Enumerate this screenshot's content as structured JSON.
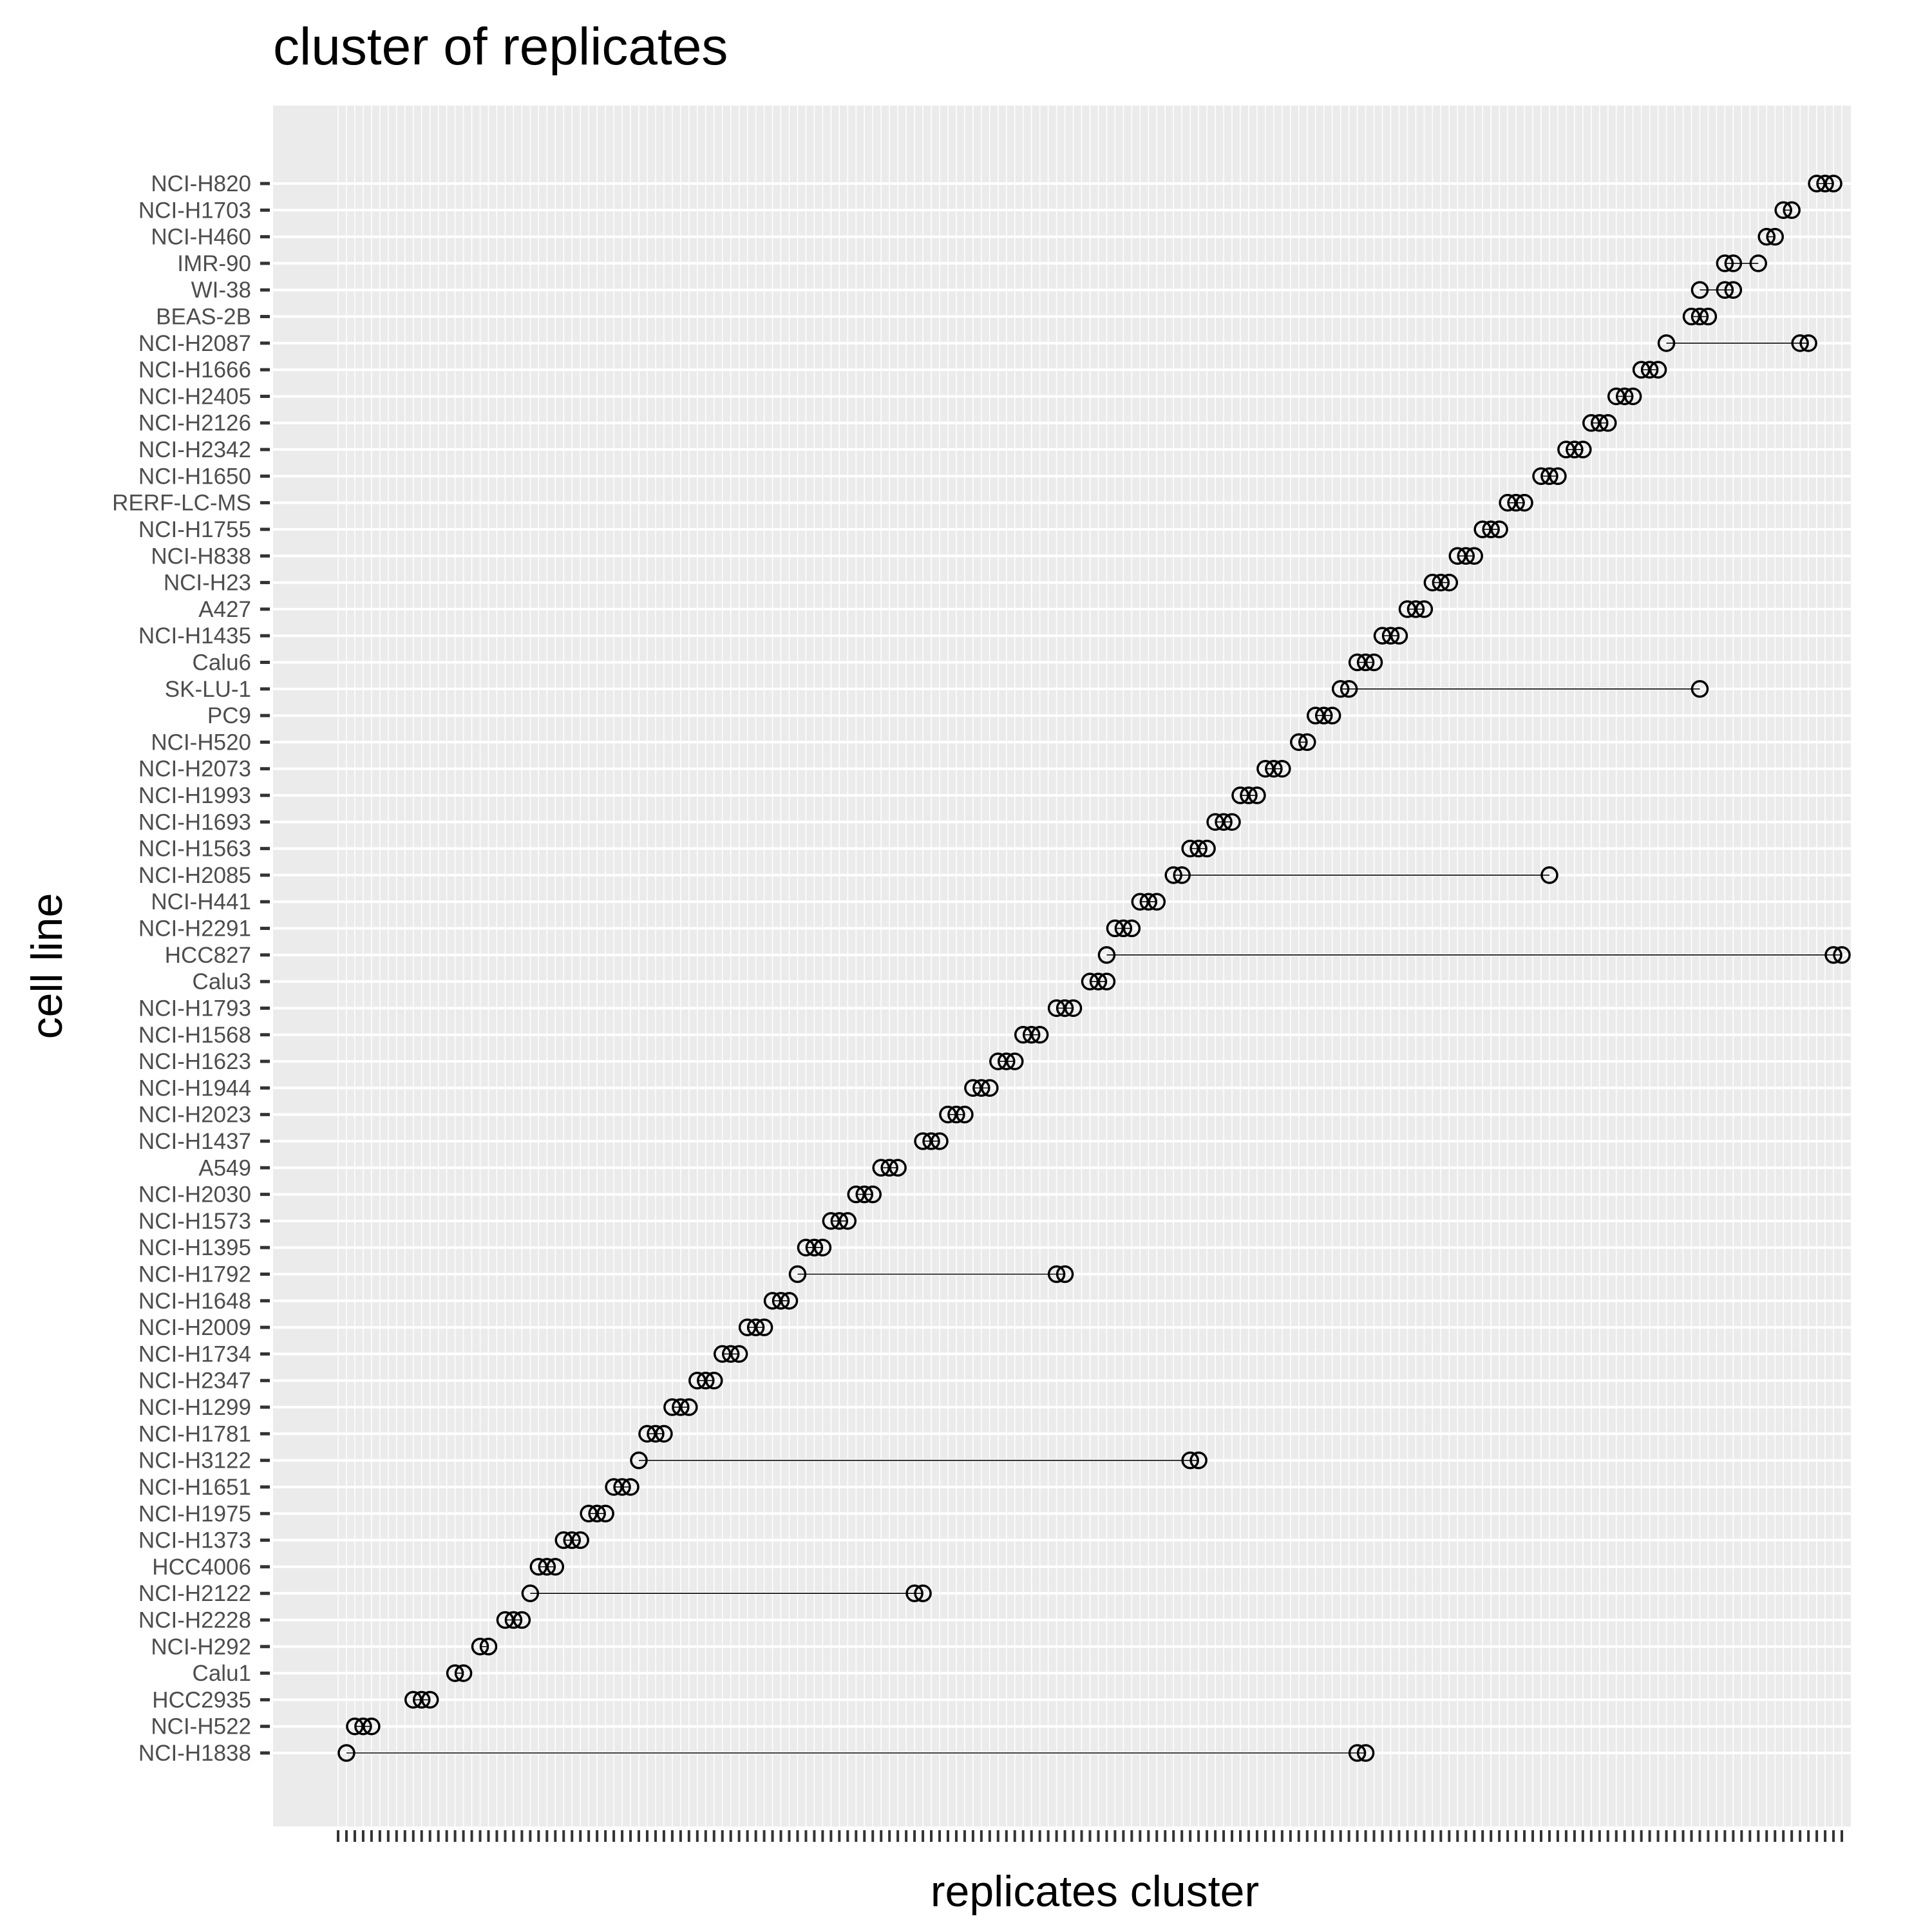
{
  "chart_data": {
    "type": "scatter",
    "title": "cluster of replicates",
    "xlabel": "replicates cluster",
    "ylabel": "cell line",
    "grid": true,
    "legend": "none",
    "marker": "open-circle",
    "x_axis_note": "categorical cluster ids (tick labels illegible)",
    "xlim": [
      1,
      181
    ],
    "colors": {
      "panel": "#ebebeb",
      "grid": "#ffffff",
      "point": "#000000",
      "segment": "#000000",
      "tick_label": "#4d4d4d"
    },
    "series": [
      {
        "cell_line": "NCI-H820",
        "clusters": [
          178,
          179,
          180
        ]
      },
      {
        "cell_line": "NCI-H1703",
        "clusters": [
          174,
          175
        ]
      },
      {
        "cell_line": "NCI-H460",
        "clusters": [
          172,
          173
        ]
      },
      {
        "cell_line": "IMR-90",
        "clusters": [
          167,
          168,
          171
        ]
      },
      {
        "cell_line": "WI-38",
        "clusters": [
          164,
          167,
          168
        ]
      },
      {
        "cell_line": "BEAS-2B",
        "clusters": [
          163,
          164,
          165
        ]
      },
      {
        "cell_line": "NCI-H2087",
        "clusters": [
          160,
          176,
          177
        ]
      },
      {
        "cell_line": "NCI-H1666",
        "clusters": [
          157,
          158,
          159
        ]
      },
      {
        "cell_line": "NCI-H2405",
        "clusters": [
          154,
          155,
          156
        ]
      },
      {
        "cell_line": "NCI-H2126",
        "clusters": [
          151,
          152,
          153
        ]
      },
      {
        "cell_line": "NCI-H2342",
        "clusters": [
          148,
          149,
          150
        ]
      },
      {
        "cell_line": "NCI-H1650",
        "clusters": [
          145,
          146,
          147
        ]
      },
      {
        "cell_line": "RERF-LC-MS",
        "clusters": [
          141,
          142,
          143
        ]
      },
      {
        "cell_line": "NCI-H1755",
        "clusters": [
          138,
          139,
          140
        ]
      },
      {
        "cell_line": "NCI-H838",
        "clusters": [
          135,
          136,
          137
        ]
      },
      {
        "cell_line": "NCI-H23",
        "clusters": [
          132,
          133,
          134
        ]
      },
      {
        "cell_line": "A427",
        "clusters": [
          129,
          130,
          131
        ]
      },
      {
        "cell_line": "NCI-H1435",
        "clusters": [
          126,
          127,
          128
        ]
      },
      {
        "cell_line": "Calu6",
        "clusters": [
          123,
          124,
          125
        ]
      },
      {
        "cell_line": "SK-LU-1",
        "clusters": [
          121,
          122,
          164
        ]
      },
      {
        "cell_line": "PC9",
        "clusters": [
          118,
          119,
          120
        ]
      },
      {
        "cell_line": "NCI-H520",
        "clusters": [
          116,
          117
        ]
      },
      {
        "cell_line": "NCI-H2073",
        "clusters": [
          112,
          113,
          114
        ]
      },
      {
        "cell_line": "NCI-H1993",
        "clusters": [
          109,
          110,
          111
        ]
      },
      {
        "cell_line": "NCI-H1693",
        "clusters": [
          106,
          107,
          108
        ]
      },
      {
        "cell_line": "NCI-H1563",
        "clusters": [
          103,
          104,
          105
        ]
      },
      {
        "cell_line": "NCI-H2085",
        "clusters": [
          101,
          102,
          146
        ]
      },
      {
        "cell_line": "NCI-H441",
        "clusters": [
          97,
          98,
          99
        ]
      },
      {
        "cell_line": "NCI-H2291",
        "clusters": [
          94,
          95,
          96
        ]
      },
      {
        "cell_line": "HCC827",
        "clusters": [
          93,
          180,
          181
        ]
      },
      {
        "cell_line": "Calu3",
        "clusters": [
          91,
          92,
          93
        ]
      },
      {
        "cell_line": "NCI-H1793",
        "clusters": [
          87,
          88,
          89
        ]
      },
      {
        "cell_line": "NCI-H1568",
        "clusters": [
          83,
          84,
          85
        ]
      },
      {
        "cell_line": "NCI-H1623",
        "clusters": [
          80,
          81,
          82
        ]
      },
      {
        "cell_line": "NCI-H1944",
        "clusters": [
          77,
          78,
          79
        ]
      },
      {
        "cell_line": "NCI-H2023",
        "clusters": [
          74,
          75,
          76
        ]
      },
      {
        "cell_line": "NCI-H1437",
        "clusters": [
          71,
          72,
          73
        ]
      },
      {
        "cell_line": "A549",
        "clusters": [
          66,
          67,
          68
        ]
      },
      {
        "cell_line": "NCI-H2030",
        "clusters": [
          63,
          64,
          65
        ]
      },
      {
        "cell_line": "NCI-H1573",
        "clusters": [
          60,
          61,
          62
        ]
      },
      {
        "cell_line": "NCI-H1395",
        "clusters": [
          57,
          58,
          59
        ]
      },
      {
        "cell_line": "NCI-H1792",
        "clusters": [
          56,
          87,
          88
        ]
      },
      {
        "cell_line": "NCI-H1648",
        "clusters": [
          53,
          54,
          55
        ]
      },
      {
        "cell_line": "NCI-H2009",
        "clusters": [
          50,
          51,
          52
        ]
      },
      {
        "cell_line": "NCI-H1734",
        "clusters": [
          47,
          48,
          49
        ]
      },
      {
        "cell_line": "NCI-H2347",
        "clusters": [
          44,
          45,
          46
        ]
      },
      {
        "cell_line": "NCI-H1299",
        "clusters": [
          41,
          42,
          43
        ]
      },
      {
        "cell_line": "NCI-H1781",
        "clusters": [
          38,
          39,
          40
        ]
      },
      {
        "cell_line": "NCI-H3122",
        "clusters": [
          37,
          103,
          104
        ]
      },
      {
        "cell_line": "NCI-H1651",
        "clusters": [
          34,
          35,
          36
        ]
      },
      {
        "cell_line": "NCI-H1975",
        "clusters": [
          31,
          32,
          33
        ]
      },
      {
        "cell_line": "NCI-H1373",
        "clusters": [
          28,
          29,
          30
        ]
      },
      {
        "cell_line": "HCC4006",
        "clusters": [
          25,
          26,
          27
        ]
      },
      {
        "cell_line": "NCI-H2122",
        "clusters": [
          24,
          70,
          71
        ]
      },
      {
        "cell_line": "NCI-H2228",
        "clusters": [
          21,
          22,
          23
        ]
      },
      {
        "cell_line": "NCI-H292",
        "clusters": [
          18,
          19
        ]
      },
      {
        "cell_line": "Calu1",
        "clusters": [
          15,
          16
        ]
      },
      {
        "cell_line": "HCC2935",
        "clusters": [
          10,
          11,
          12
        ]
      },
      {
        "cell_line": "NCI-H522",
        "clusters": [
          3,
          4,
          5
        ]
      },
      {
        "cell_line": "NCI-H1838",
        "clusters": [
          2,
          123,
          124
        ]
      }
    ]
  }
}
